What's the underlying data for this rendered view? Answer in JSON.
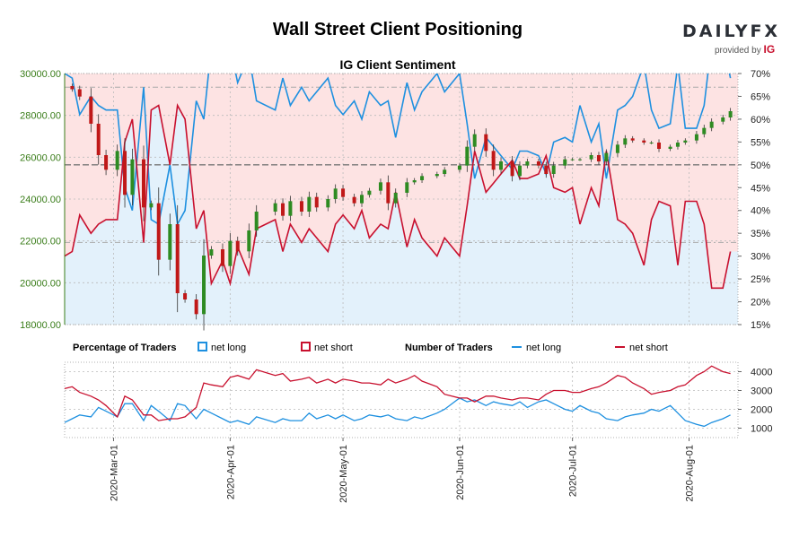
{
  "header": {
    "title": "Wall Street Client Positioning",
    "brand_logo": "DAILYFX",
    "brand_sub": "provided by",
    "brand_ig": "IG"
  },
  "colors": {
    "long": "#1e90e0",
    "short": "#c8102e",
    "price_axis": "#3a7d1a",
    "short_fill": "#fde3e3",
    "long_fill": "#e3f1fb",
    "candle_up": "#2e8b22",
    "candle_down": "#c01818"
  },
  "legend": {
    "pct_label": "Percentage of Traders",
    "num_label": "Number of Traders",
    "net_long": "net long",
    "net_short": "net short"
  },
  "chart_data": [
    {
      "type": "line",
      "title": "IG Client Sentiment",
      "x": [
        "2020-02-17",
        "2020-02-19",
        "2020-02-21",
        "2020-02-24",
        "2020-02-26",
        "2020-02-28",
        "2020-03-02",
        "2020-03-04",
        "2020-03-06",
        "2020-03-09",
        "2020-03-11",
        "2020-03-13",
        "2020-03-16",
        "2020-03-18",
        "2020-03-20",
        "2020-03-23",
        "2020-03-25",
        "2020-03-27",
        "2020-03-30",
        "2020-04-01",
        "2020-04-03",
        "2020-04-06",
        "2020-04-08",
        "2020-04-13",
        "2020-04-15",
        "2020-04-17",
        "2020-04-20",
        "2020-04-22",
        "2020-04-24",
        "2020-04-27",
        "2020-04-29",
        "2020-05-01",
        "2020-05-04",
        "2020-05-06",
        "2020-05-08",
        "2020-05-11",
        "2020-05-13",
        "2020-05-15",
        "2020-05-18",
        "2020-05-20",
        "2020-05-22",
        "2020-05-26",
        "2020-05-28",
        "2020-06-01",
        "2020-06-03",
        "2020-06-05",
        "2020-06-08",
        "2020-06-10",
        "2020-06-12",
        "2020-06-15",
        "2020-06-17",
        "2020-06-19",
        "2020-06-22",
        "2020-06-24",
        "2020-06-26",
        "2020-06-29",
        "2020-07-01",
        "2020-07-03",
        "2020-07-06",
        "2020-07-08",
        "2020-07-10",
        "2020-07-13",
        "2020-07-15",
        "2020-07-17",
        "2020-07-20",
        "2020-07-22",
        "2020-07-24",
        "2020-07-27",
        "2020-07-29",
        "2020-07-31",
        "2020-08-03",
        "2020-08-05",
        "2020-08-07",
        "2020-08-10",
        "2020-08-12"
      ],
      "series": [
        {
          "name": "net short",
          "values": [
            30,
            31,
            39,
            35,
            37,
            38,
            38,
            55,
            60,
            33,
            62,
            63,
            50,
            63,
            60,
            36,
            40,
            24,
            29,
            24,
            32,
            26,
            36,
            38,
            31,
            37,
            33,
            36,
            34,
            31,
            37,
            39,
            36,
            40,
            34,
            37,
            36,
            44,
            32,
            38,
            34,
            30,
            34,
            30,
            41,
            53,
            44,
            46,
            48,
            51,
            47,
            47,
            48,
            52,
            45,
            44,
            45,
            37,
            45,
            41,
            53,
            38,
            37,
            35,
            28,
            38,
            42,
            41,
            28,
            42,
            42,
            37,
            23,
            23,
            31
          ],
          "color": "#c8102e"
        },
        {
          "name": "net long",
          "values": [
            70,
            69,
            61,
            65,
            63,
            62,
            62,
            45,
            40,
            67,
            38,
            37,
            50,
            37,
            40,
            64,
            60,
            76,
            71,
            76,
            68,
            74,
            64,
            62,
            69,
            63,
            67,
            64,
            66,
            69,
            63,
            61,
            64,
            60,
            66,
            63,
            64,
            56,
            68,
            62,
            66,
            70,
            66,
            70,
            59,
            47,
            56,
            54,
            52,
            49,
            53,
            53,
            52,
            48,
            55,
            56,
            55,
            63,
            55,
            59,
            47,
            62,
            63,
            65,
            72,
            62,
            58,
            59,
            72,
            58,
            58,
            63,
            77,
            77,
            69
          ],
          "color": "#1e90e0"
        }
      ],
      "price": {
        "name": "Wall Street",
        "values": [
          29400,
          29250,
          28900,
          27600,
          26100,
          25400,
          26300,
          24200,
          25900,
          23600,
          23800,
          21100,
          22800,
          19500,
          19200,
          18500,
          21300,
          21600,
          20800,
          22000,
          21500,
          22500,
          23400,
          23800,
          23200,
          23900,
          23400,
          24100,
          23600,
          24000,
          24500,
          24100,
          23800,
          24200,
          24400,
          24800,
          23800,
          24300,
          24800,
          24900,
          25100,
          25200,
          25400,
          25600,
          26500,
          27100,
          26300,
          25400,
          25800,
          25100,
          25600,
          25800,
          25600,
          25200,
          25600,
          25900,
          25900,
          25900,
          26100,
          25800,
          26200,
          26600,
          26900,
          26800,
          26700,
          26700,
          26400,
          26500,
          26700,
          26800,
          27100,
          27400,
          27700,
          27900,
          28200
        ]
      },
      "ylim_price": [
        18000,
        30000
      ],
      "ylim_pct": [
        15,
        70
      ],
      "price_ticks": [
        "18000.00",
        "20000.00",
        "22000.00",
        "24000.00",
        "26000.00",
        "28000.00",
        "30000.00"
      ],
      "pct_ticks": [
        "15%",
        "20%",
        "25%",
        "30%",
        "35%",
        "40%",
        "45%",
        "50%",
        "55%",
        "60%",
        "65%",
        "70%"
      ],
      "reference_lines": [
        67,
        50,
        33
      ]
    },
    {
      "type": "line",
      "x_ticks": [
        "2020-Mar-01",
        "2020-Apr-01",
        "2020-May-01",
        "2020-Jun-01",
        "2020-Jul-01",
        "2020-Aug-01"
      ],
      "series": [
        {
          "name": "net long",
          "values": [
            1300,
            1500,
            1700,
            1600,
            2100,
            1900,
            1600,
            2300,
            2300,
            1400,
            2200,
            1900,
            1400,
            2300,
            2200,
            1500,
            2000,
            1800,
            1500,
            1300,
            1400,
            1200,
            1600,
            1300,
            1500,
            1400,
            1400,
            1800,
            1500,
            1700,
            1500,
            1700,
            1400,
            1500,
            1700,
            1600,
            1700,
            1500,
            1400,
            1600,
            1500,
            1800,
            2000,
            2600,
            2400,
            2500,
            2200,
            2400,
            2300,
            2200,
            2400,
            2100,
            2400,
            2500,
            2300,
            2000,
            1900,
            2200,
            1900,
            1800,
            1500,
            1400,
            1600,
            1700,
            1800,
            2000,
            1900,
            2200,
            1800,
            1400,
            1200,
            1100,
            1300,
            1500,
            1700
          ],
          "color": "#1e90e0"
        },
        {
          "name": "net short",
          "values": [
            3100,
            3200,
            2900,
            2700,
            2500,
            2200,
            1600,
            2700,
            2500,
            1700,
            1700,
            1400,
            1500,
            1500,
            1600,
            2100,
            3400,
            3300,
            3200,
            3700,
            3800,
            3600,
            4100,
            3800,
            3900,
            3500,
            3600,
            3700,
            3400,
            3600,
            3400,
            3600,
            3500,
            3400,
            3400,
            3300,
            3600,
            3400,
            3600,
            3800,
            3500,
            3200,
            2800,
            2600,
            2600,
            2400,
            2700,
            2700,
            2600,
            2500,
            2600,
            2600,
            2500,
            2800,
            3000,
            3000,
            2900,
            2900,
            3100,
            3200,
            3400,
            3800,
            3700,
            3400,
            3100,
            2800,
            2900,
            3000,
            3200,
            3300,
            3800,
            4000,
            4300,
            4000,
            3900
          ],
          "color": "#c8102e"
        }
      ],
      "ylim": [
        500,
        4500
      ],
      "y_ticks": [
        "1000",
        "2000",
        "3000",
        "4000"
      ]
    }
  ]
}
